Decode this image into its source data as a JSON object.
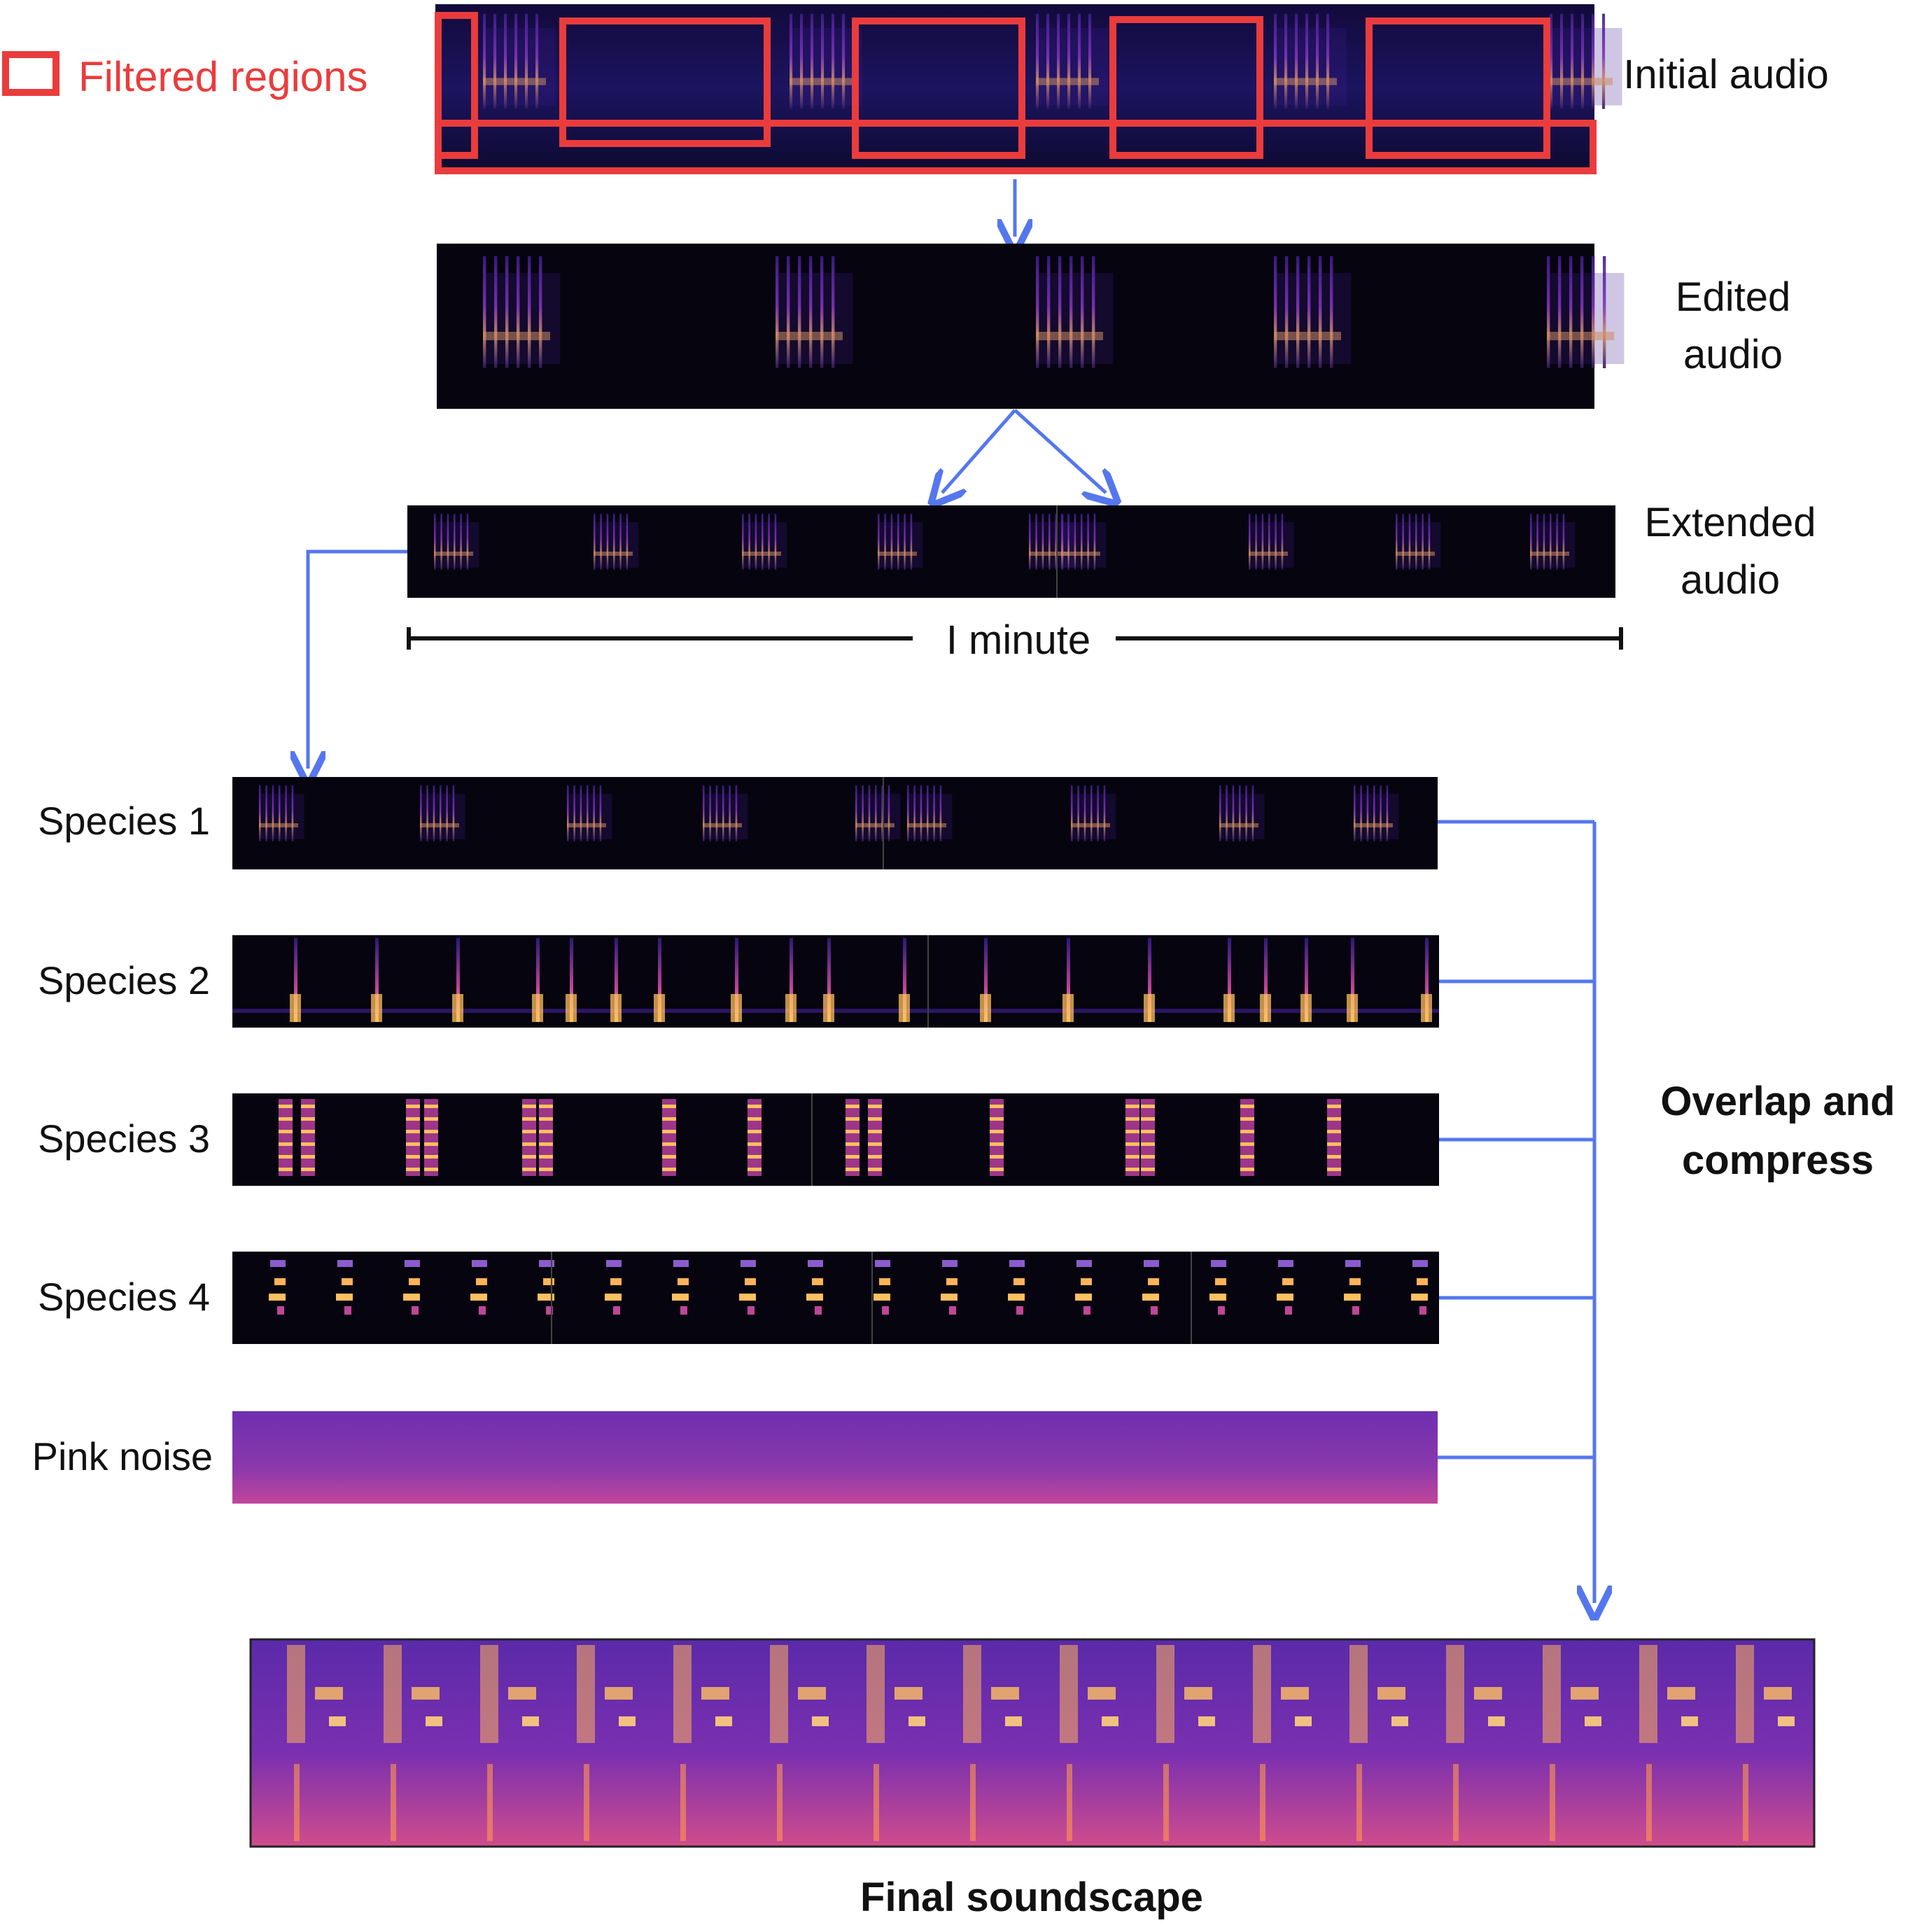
{
  "legend": {
    "label": "Filtered regions",
    "color": "#ea3c3c"
  },
  "stages": {
    "initial": "Initial audio",
    "edited": "Edited audio",
    "extended": "Extended audio",
    "duration": "I minute"
  },
  "species": [
    {
      "label": "Species 1"
    },
    {
      "label": "Species 2"
    },
    {
      "label": "Species 3"
    },
    {
      "label": "Species 4"
    },
    {
      "label": "Pink noise"
    }
  ],
  "merge_label": "Overlap and compress",
  "final_label": "Final soundscape",
  "colors": {
    "arrow": "#5577ee",
    "filter_box": "#ea3c3c",
    "spectrogram_bg": "#06040f",
    "noise_top": "#6e2fb0",
    "noise_bottom": "#c0469a",
    "soundscape_bg": "#5a2aaa",
    "call_hot": "#ffc060"
  }
}
